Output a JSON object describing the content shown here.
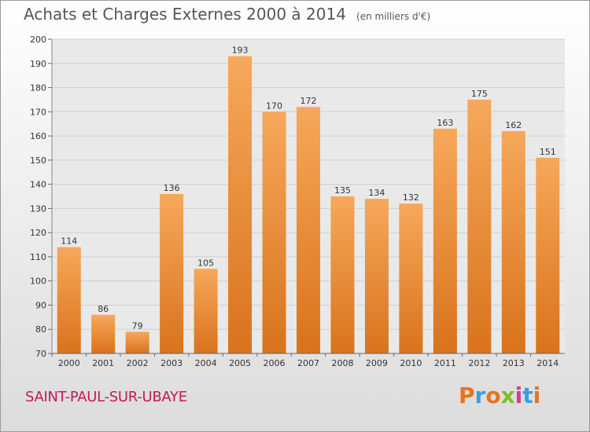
{
  "header": {
    "title": "Achats et Charges Externes 2000 à 2014",
    "subtitle": "(en milliers d'€)"
  },
  "footer": {
    "commune": "SAINT-PAUL-SUR-UBAYE",
    "logo": "Proxiti",
    "logo_colors": [
      "#e8731c",
      "#3aa0d8",
      "#e8731c",
      "#7cbf2e",
      "#d43c8c",
      "#3aa0d8",
      "#e8731c"
    ]
  },
  "colors": {
    "bar_light": "#f6a85a",
    "bar_dark": "#d9731c",
    "grid": "#cfcfcf",
    "plot_bg": "#e9e9e9",
    "commune": "#c2185b"
  },
  "chart_data": {
    "type": "bar",
    "title": "Achats et Charges Externes 2000 à 2014",
    "subtitle": "(en milliers d'€)",
    "categories": [
      "2000",
      "2001",
      "2002",
      "2003",
      "2004",
      "2005",
      "2006",
      "2007",
      "2008",
      "2009",
      "2010",
      "2011",
      "2012",
      "2013",
      "2014"
    ],
    "values": [
      114,
      86,
      79,
      136,
      105,
      193,
      170,
      172,
      135,
      134,
      132,
      163,
      175,
      162,
      151
    ],
    "ylim": [
      70,
      200
    ],
    "yticks": [
      70,
      80,
      90,
      100,
      110,
      120,
      130,
      140,
      150,
      160,
      170,
      180,
      190,
      200
    ],
    "grid": true,
    "data_labels": true
  }
}
